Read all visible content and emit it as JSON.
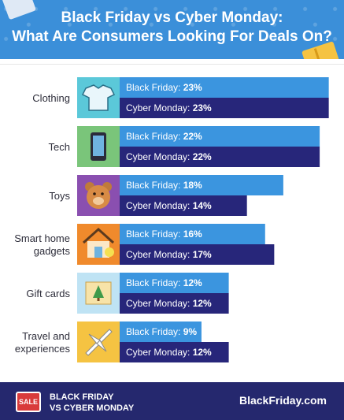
{
  "title_line1": "Black Friday vs Cyber Monday:",
  "title_line2": "What Are Consumers Looking For Deals On?",
  "footer": {
    "sale_badge": "SALE",
    "tagline_line1": "BLACK FRIDAY",
    "tagline_line2": "VS CYBER MONDAY",
    "brand": "BlackFriday.com"
  },
  "colors": {
    "black_friday": "#3b95df",
    "cyber_monday": "#27267a",
    "header": "#3b8fd9",
    "footer": "#25286e"
  },
  "chart_data": {
    "type": "bar",
    "categories": [
      "Clothing",
      "Tech",
      "Toys",
      "Smart home gadgets",
      "Gift cards",
      "Travel and experiences"
    ],
    "category_lines": [
      [
        "Clothing"
      ],
      [
        "Tech"
      ],
      [
        "Toys"
      ],
      [
        "Smart home",
        "gadgets"
      ],
      [
        "Gift cards"
      ],
      [
        "Travel and",
        "experiences"
      ]
    ],
    "icons": [
      "shirt-icon",
      "phone-icon",
      "teddy-bear-icon",
      "smart-home-icon",
      "gift-card-icon",
      "airplane-icon"
    ],
    "icon_colors": [
      "#5bc8d9",
      "#7ac57a",
      "#8a4fb0",
      "#f08a2c",
      "#bfe3f4",
      "#f5c342"
    ],
    "series": [
      {
        "name": "Black Friday",
        "values": [
          23,
          22,
          18,
          16,
          12,
          9
        ]
      },
      {
        "name": "Cyber Monday",
        "values": [
          23,
          22,
          14,
          17,
          12,
          12
        ]
      }
    ],
    "value_format": "{v}%",
    "xlim": [
      0,
      25
    ],
    "grid": false,
    "legend": "none"
  }
}
